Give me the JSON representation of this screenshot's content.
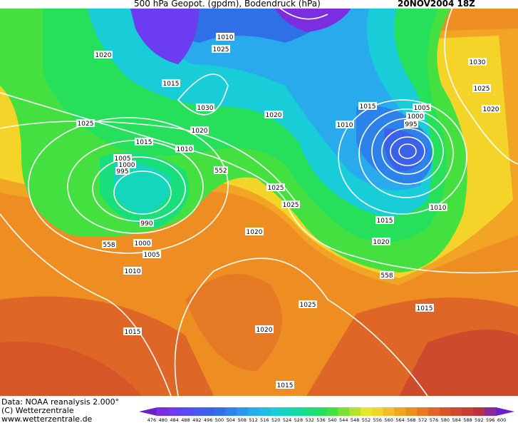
{
  "header": {
    "title": "500 hPa Geopot. (gpdm), Bodendruck (hPa)",
    "date": "20NOV2004 18Z"
  },
  "isobar_labels": [
    "1020",
    "1025",
    "1015",
    "1030",
    "1020",
    "1020",
    "1025",
    "1015",
    "1015",
    "1010",
    "1005",
    "1000",
    "995",
    "1010",
    "1005",
    "1000",
    "995",
    "990",
    "552",
    "1025",
    "1025",
    "1020",
    "1000",
    "1005",
    "558",
    "1010",
    "1015",
    "1020",
    "1025",
    "1015",
    "1010",
    "1020",
    "558",
    "1015",
    "1030",
    "1025",
    "1020",
    "1010",
    "1015"
  ],
  "footer": {
    "source": "Data: NOAA reanalysis 2.000°",
    "copyright": "(C) Wetterzentrale",
    "url": "www.wetterzentrale.de"
  },
  "legend": {
    "labels": [
      "476",
      "480",
      "484",
      "488",
      "492",
      "496",
      "500",
      "504",
      "508",
      "512",
      "516",
      "520",
      "524",
      "528",
      "532",
      "536",
      "540",
      "544",
      "548",
      "552",
      "556",
      "560",
      "564",
      "568",
      "572",
      "576",
      "580",
      "584",
      "588",
      "592",
      "596",
      "600"
    ],
    "colors": [
      "#6a1fc8",
      "#7a2ee0",
      "#6b3cf0",
      "#5a4af5",
      "#4858f0",
      "#3a62e8",
      "#2f70e6",
      "#2c82ea",
      "#2a96ec",
      "#28aaec",
      "#20bce6",
      "#18ccd8",
      "#14d6bc",
      "#12dc9c",
      "#18de7c",
      "#26e05c",
      "#44e040",
      "#78e038",
      "#b0e42e",
      "#e4e82a",
      "#f4d428",
      "#f4bc26",
      "#f2a424",
      "#ee8e22",
      "#e67a24",
      "#de6626",
      "#d65628",
      "#ce4a2c",
      "#c64032",
      "#b8343c",
      "#8a2a9a",
      "#6a1fc8"
    ]
  }
}
